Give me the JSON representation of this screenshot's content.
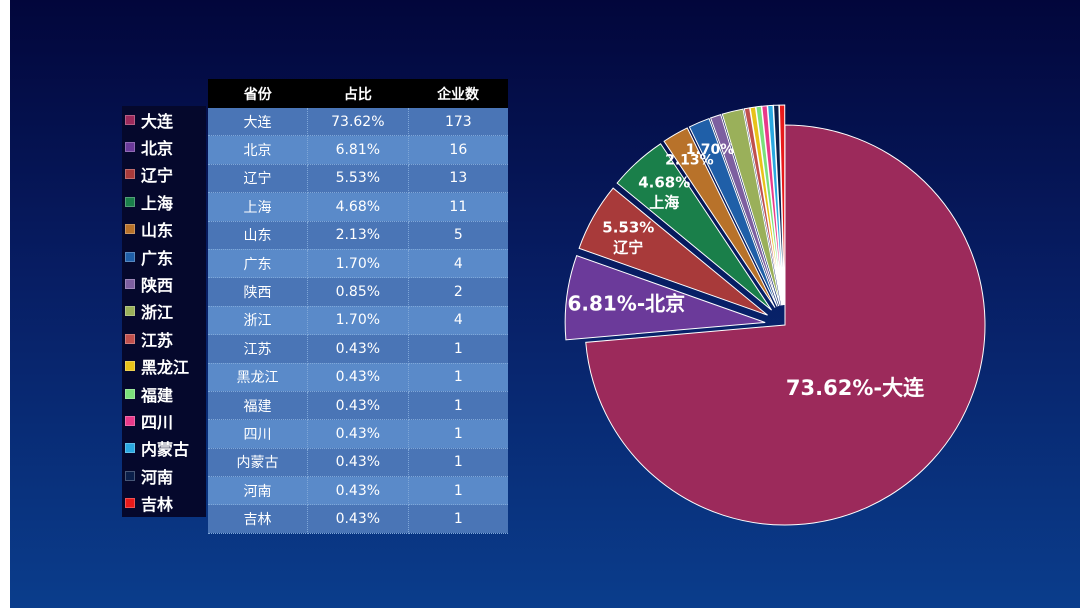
{
  "table": {
    "headers": [
      "省份",
      "占比",
      "企业数"
    ]
  },
  "chart_data": {
    "type": "pie",
    "categories": [
      "大连",
      "北京",
      "辽宁",
      "上海",
      "山东",
      "广东",
      "陕西",
      "浙江",
      "江苏",
      "黑龙江",
      "福建",
      "四川",
      "内蒙古",
      "河南",
      "吉林"
    ],
    "percent_labels": [
      "73.62%",
      "6.81%",
      "5.53%",
      "4.68%",
      "2.13%",
      "1.70%",
      "0.85%",
      "1.70%",
      "0.43%",
      "0.43%",
      "0.43%",
      "0.43%",
      "0.43%",
      "0.43%",
      "0.43%"
    ],
    "values": [
      173,
      16,
      13,
      11,
      5,
      4,
      2,
      4,
      1,
      1,
      1,
      1,
      1,
      1,
      1
    ],
    "colors": [
      "#9c2a5b",
      "#6b3a9a",
      "#a83a3a",
      "#1a7f4a",
      "#b8722a",
      "#1f5fa8",
      "#7d5fa0",
      "#9ab05a",
      "#c0504d",
      "#e8c21a",
      "#7be07b",
      "#e83a8a",
      "#2aa8e0",
      "#0a1f4a",
      "#e81a1a"
    ],
    "slice_labels": [
      {
        "index": 0,
        "text": "73.62%-大连"
      },
      {
        "index": 1,
        "text": "6.81%-北京"
      },
      {
        "index": 2,
        "text": "5.53%",
        "text2": "辽宁"
      },
      {
        "index": 3,
        "text": "4.68%",
        "text2": "上海"
      },
      {
        "index": 4,
        "text": "2.13%"
      },
      {
        "index": 5,
        "text": "1.70%"
      }
    ]
  }
}
